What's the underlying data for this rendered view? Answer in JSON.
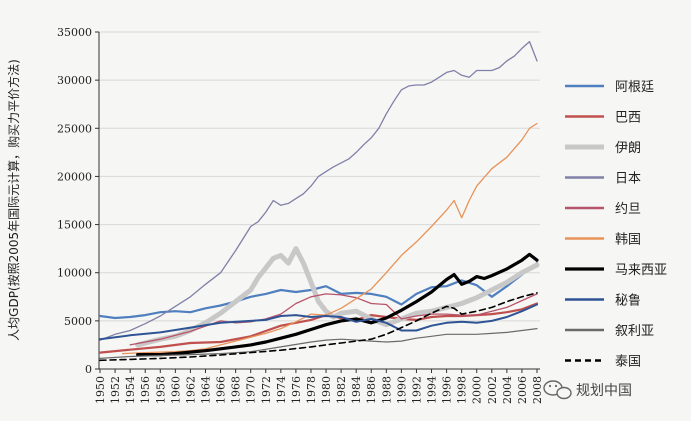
{
  "chart_data": {
    "type": "line",
    "ylabel": "人均GDP(按照2005年国际元计算，购买力平价方法)",
    "ylim": [
      0,
      35000
    ],
    "yticks": [
      0,
      5000,
      10000,
      15000,
      20000,
      25000,
      30000,
      35000
    ],
    "xlim": [
      1950,
      2008
    ],
    "xticks": [
      1950,
      1952,
      1954,
      1956,
      1958,
      1960,
      1962,
      1964,
      1966,
      1968,
      1970,
      1972,
      1974,
      1976,
      1978,
      1980,
      1982,
      1984,
      1986,
      1988,
      1990,
      1992,
      1994,
      1996,
      1998,
      2000,
      2002,
      2004,
      2006,
      2008
    ],
    "grid": "horizontal",
    "legend_position": "right",
    "series": [
      {
        "name": "阿根廷",
        "color": "#4f7fbf",
        "width": 2.2,
        "dash": "",
        "points": [
          [
            1950,
            5500
          ],
          [
            1952,
            5300
          ],
          [
            1954,
            5400
          ],
          [
            1956,
            5600
          ],
          [
            1958,
            5900
          ],
          [
            1960,
            6000
          ],
          [
            1962,
            5900
          ],
          [
            1964,
            6300
          ],
          [
            1966,
            6600
          ],
          [
            1968,
            7000
          ],
          [
            1970,
            7500
          ],
          [
            1972,
            7800
          ],
          [
            1974,
            8200
          ],
          [
            1976,
            8000
          ],
          [
            1978,
            8200
          ],
          [
            1980,
            8600
          ],
          [
            1982,
            7800
          ],
          [
            1984,
            7900
          ],
          [
            1986,
            7800
          ],
          [
            1988,
            7500
          ],
          [
            1990,
            6700
          ],
          [
            1992,
            7800
          ],
          [
            1994,
            8500
          ],
          [
            1996,
            8600
          ],
          [
            1998,
            9200
          ],
          [
            2000,
            8700
          ],
          [
            2002,
            7500
          ],
          [
            2004,
            8600
          ],
          [
            2006,
            9800
          ],
          [
            2008,
            11000
          ]
        ]
      },
      {
        "name": "巴西",
        "color": "#c0504d",
        "width": 2.2,
        "dash": "",
        "points": [
          [
            1950,
            1700
          ],
          [
            1954,
            2000
          ],
          [
            1958,
            2300
          ],
          [
            1962,
            2700
          ],
          [
            1966,
            2800
          ],
          [
            1970,
            3400
          ],
          [
            1974,
            4500
          ],
          [
            1978,
            5100
          ],
          [
            1980,
            5600
          ],
          [
            1982,
            5300
          ],
          [
            1984,
            5100
          ],
          [
            1986,
            5600
          ],
          [
            1988,
            5400
          ],
          [
            1990,
            5200
          ],
          [
            1992,
            5100
          ],
          [
            1994,
            5400
          ],
          [
            1996,
            5500
          ],
          [
            1998,
            5500
          ],
          [
            2000,
            5600
          ],
          [
            2002,
            5700
          ],
          [
            2004,
            5900
          ],
          [
            2006,
            6200
          ],
          [
            2008,
            6800
          ]
        ]
      },
      {
        "name": "伊朗",
        "color": "#c8c8c8",
        "width": 5,
        "dash": "",
        "points": [
          [
            1955,
            2500
          ],
          [
            1958,
            3100
          ],
          [
            1960,
            3400
          ],
          [
            1962,
            4000
          ],
          [
            1964,
            4800
          ],
          [
            1966,
            5800
          ],
          [
            1968,
            7000
          ],
          [
            1970,
            8200
          ],
          [
            1971,
            9500
          ],
          [
            1972,
            10500
          ],
          [
            1973,
            11500
          ],
          [
            1974,
            11800
          ],
          [
            1975,
            11000
          ],
          [
            1976,
            12500
          ],
          [
            1977,
            11000
          ],
          [
            1978,
            9000
          ],
          [
            1979,
            7000
          ],
          [
            1980,
            6000
          ],
          [
            1981,
            5400
          ],
          [
            1982,
            5800
          ],
          [
            1984,
            6000
          ],
          [
            1986,
            5200
          ],
          [
            1988,
            4600
          ],
          [
            1990,
            5200
          ],
          [
            1992,
            5800
          ],
          [
            1994,
            6000
          ],
          [
            1996,
            6400
          ],
          [
            1998,
            6800
          ],
          [
            2000,
            7400
          ],
          [
            2002,
            8200
          ],
          [
            2004,
            9000
          ],
          [
            2006,
            10000
          ],
          [
            2008,
            10800
          ]
        ]
      },
      {
        "name": "日本",
        "color": "#8080a8",
        "width": 1.3,
        "dash": "",
        "points": [
          [
            1950,
            3000
          ],
          [
            1952,
            3600
          ],
          [
            1954,
            4000
          ],
          [
            1956,
            4700
          ],
          [
            1958,
            5500
          ],
          [
            1960,
            6500
          ],
          [
            1962,
            7500
          ],
          [
            1964,
            8800
          ],
          [
            1966,
            10000
          ],
          [
            1968,
            12300
          ],
          [
            1970,
            14800
          ],
          [
            1971,
            15300
          ],
          [
            1972,
            16300
          ],
          [
            1973,
            17500
          ],
          [
            1974,
            17000
          ],
          [
            1975,
            17200
          ],
          [
            1976,
            17700
          ],
          [
            1977,
            18200
          ],
          [
            1978,
            19000
          ],
          [
            1979,
            20000
          ],
          [
            1980,
            20500
          ],
          [
            1981,
            21000
          ],
          [
            1982,
            21400
          ],
          [
            1983,
            21800
          ],
          [
            1984,
            22500
          ],
          [
            1985,
            23300
          ],
          [
            1986,
            24000
          ],
          [
            1987,
            25000
          ],
          [
            1988,
            26500
          ],
          [
            1989,
            27800
          ],
          [
            1990,
            29000
          ],
          [
            1991,
            29400
          ],
          [
            1992,
            29500
          ],
          [
            1993,
            29500
          ],
          [
            1994,
            29800
          ],
          [
            1995,
            30300
          ],
          [
            1996,
            30800
          ],
          [
            1997,
            31000
          ],
          [
            1998,
            30500
          ],
          [
            1999,
            30300
          ],
          [
            2000,
            31000
          ],
          [
            2001,
            31000
          ],
          [
            2002,
            31000
          ],
          [
            2003,
            31300
          ],
          [
            2004,
            32000
          ],
          [
            2005,
            32500
          ],
          [
            2006,
            33300
          ],
          [
            2007,
            34000
          ],
          [
            2008,
            32000
          ]
        ]
      },
      {
        "name": "约旦",
        "color": "#b8546a",
        "width": 1.3,
        "dash": "",
        "points": [
          [
            1954,
            2500
          ],
          [
            1958,
            3100
          ],
          [
            1962,
            3900
          ],
          [
            1966,
            5000
          ],
          [
            1968,
            4800
          ],
          [
            1970,
            4900
          ],
          [
            1972,
            5200
          ],
          [
            1974,
            5700
          ],
          [
            1976,
            6800
          ],
          [
            1978,
            7500
          ],
          [
            1980,
            7800
          ],
          [
            1982,
            7700
          ],
          [
            1984,
            7400
          ],
          [
            1986,
            6800
          ],
          [
            1988,
            6700
          ],
          [
            1990,
            5200
          ],
          [
            1992,
            5500
          ],
          [
            1994,
            5700
          ],
          [
            1996,
            5700
          ],
          [
            1998,
            5600
          ],
          [
            2000,
            5600
          ],
          [
            2002,
            6000
          ],
          [
            2004,
            6400
          ],
          [
            2006,
            7100
          ],
          [
            2008,
            7800
          ]
        ]
      },
      {
        "name": "韩国",
        "color": "#e8935a",
        "width": 1.3,
        "dash": "",
        "points": [
          [
            1953,
            1600
          ],
          [
            1956,
            1700
          ],
          [
            1960,
            1800
          ],
          [
            1962,
            1900
          ],
          [
            1964,
            2100
          ],
          [
            1966,
            2500
          ],
          [
            1968,
            2900
          ],
          [
            1970,
            3300
          ],
          [
            1972,
            3700
          ],
          [
            1974,
            4200
          ],
          [
            1976,
            4900
          ],
          [
            1978,
            5700
          ],
          [
            1980,
            5600
          ],
          [
            1982,
            6300
          ],
          [
            1984,
            7300
          ],
          [
            1986,
            8300
          ],
          [
            1988,
            10000
          ],
          [
            1990,
            11800
          ],
          [
            1992,
            13200
          ],
          [
            1994,
            14800
          ],
          [
            1996,
            16500
          ],
          [
            1997,
            17500
          ],
          [
            1998,
            15700
          ],
          [
            1999,
            17500
          ],
          [
            2000,
            19000
          ],
          [
            2002,
            20800
          ],
          [
            2004,
            22000
          ],
          [
            2006,
            23800
          ],
          [
            2007,
            25000
          ],
          [
            2008,
            25500
          ]
        ]
      },
      {
        "name": "马来西亚",
        "color": "#000000",
        "width": 3.2,
        "dash": "",
        "points": [
          [
            1955,
            1500
          ],
          [
            1958,
            1500
          ],
          [
            1960,
            1600
          ],
          [
            1962,
            1750
          ],
          [
            1964,
            1900
          ],
          [
            1966,
            2100
          ],
          [
            1968,
            2300
          ],
          [
            1970,
            2500
          ],
          [
            1972,
            2800
          ],
          [
            1974,
            3200
          ],
          [
            1976,
            3600
          ],
          [
            1978,
            4100
          ],
          [
            1980,
            4600
          ],
          [
            1982,
            5000
          ],
          [
            1984,
            5200
          ],
          [
            1986,
            4800
          ],
          [
            1988,
            5300
          ],
          [
            1990,
            6100
          ],
          [
            1992,
            7000
          ],
          [
            1994,
            8000
          ],
          [
            1996,
            9300
          ],
          [
            1997,
            9800
          ],
          [
            1998,
            8800
          ],
          [
            1999,
            9100
          ],
          [
            2000,
            9600
          ],
          [
            2001,
            9400
          ],
          [
            2002,
            9700
          ],
          [
            2004,
            10400
          ],
          [
            2006,
            11300
          ],
          [
            2007,
            11900
          ],
          [
            2008,
            11300
          ]
        ]
      },
      {
        "name": "秘鲁",
        "color": "#2f5496",
        "width": 2,
        "dash": "",
        "points": [
          [
            1950,
            3100
          ],
          [
            1954,
            3500
          ],
          [
            1958,
            3800
          ],
          [
            1962,
            4300
          ],
          [
            1966,
            4800
          ],
          [
            1970,
            5000
          ],
          [
            1972,
            5100
          ],
          [
            1974,
            5500
          ],
          [
            1976,
            5600
          ],
          [
            1978,
            5400
          ],
          [
            1980,
            5500
          ],
          [
            1982,
            5400
          ],
          [
            1984,
            4900
          ],
          [
            1986,
            5200
          ],
          [
            1988,
            4800
          ],
          [
            1990,
            4000
          ],
          [
            1992,
            4000
          ],
          [
            1994,
            4500
          ],
          [
            1996,
            4800
          ],
          [
            1998,
            4900
          ],
          [
            2000,
            4800
          ],
          [
            2002,
            5000
          ],
          [
            2004,
            5400
          ],
          [
            2006,
            6000
          ],
          [
            2008,
            6700
          ]
        ]
      },
      {
        "name": "叙利亚",
        "color": "#6a6a6a",
        "width": 1.2,
        "dash": "",
        "points": [
          [
            1950,
            1100
          ],
          [
            1954,
            1300
          ],
          [
            1958,
            1400
          ],
          [
            1962,
            1500
          ],
          [
            1966,
            1600
          ],
          [
            1970,
            1800
          ],
          [
            1974,
            2300
          ],
          [
            1978,
            2800
          ],
          [
            1980,
            3000
          ],
          [
            1982,
            3100
          ],
          [
            1984,
            3000
          ],
          [
            1986,
            2900
          ],
          [
            1988,
            2800
          ],
          [
            1990,
            2900
          ],
          [
            1992,
            3200
          ],
          [
            1994,
            3400
          ],
          [
            1996,
            3600
          ],
          [
            1998,
            3600
          ],
          [
            2000,
            3600
          ],
          [
            2002,
            3700
          ],
          [
            2004,
            3800
          ],
          [
            2006,
            4000
          ],
          [
            2008,
            4200
          ]
        ]
      },
      {
        "name": "泰国",
        "color": "#000000",
        "width": 1.6,
        "dash": "6,4",
        "points": [
          [
            1950,
            900
          ],
          [
            1954,
            1000
          ],
          [
            1958,
            1100
          ],
          [
            1962,
            1250
          ],
          [
            1966,
            1450
          ],
          [
            1970,
            1700
          ],
          [
            1974,
            1950
          ],
          [
            1978,
            2300
          ],
          [
            1980,
            2500
          ],
          [
            1982,
            2700
          ],
          [
            1984,
            2900
          ],
          [
            1986,
            3100
          ],
          [
            1988,
            3600
          ],
          [
            1990,
            4300
          ],
          [
            1992,
            5000
          ],
          [
            1994,
            5800
          ],
          [
            1996,
            6500
          ],
          [
            1997,
            6300
          ],
          [
            1998,
            5700
          ],
          [
            2000,
            6000
          ],
          [
            2002,
            6400
          ],
          [
            2004,
            7000
          ],
          [
            2006,
            7500
          ],
          [
            2008,
            7900
          ]
        ]
      }
    ]
  },
  "watermark": {
    "text": "规划中国",
    "icon": "wechat-icon"
  }
}
